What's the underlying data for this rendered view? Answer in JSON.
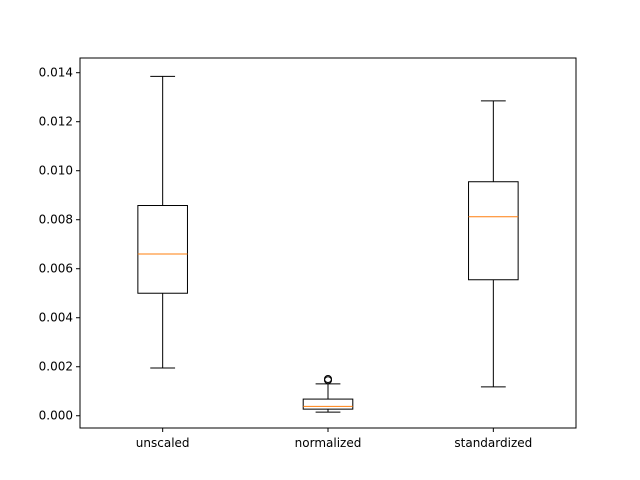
{
  "chart_data": {
    "type": "boxplot",
    "title": "",
    "xlabel": "",
    "ylabel": "",
    "ylim": [
      -0.0005,
      0.0146
    ],
    "yticks": [
      0.0,
      0.002,
      0.004,
      0.006,
      0.008,
      0.01,
      0.012,
      0.014
    ],
    "ytick_labels": [
      "0.000",
      "0.002",
      "0.004",
      "0.006",
      "0.008",
      "0.010",
      "0.012",
      "0.014"
    ],
    "grid": false,
    "categories": [
      "unscaled",
      "normalized",
      "standardized"
    ],
    "boxes": [
      {
        "whisker_low": 0.00195,
        "q1": 0.005,
        "median": 0.0066,
        "q3": 0.00858,
        "whisker_high": 0.01385,
        "outliers": []
      },
      {
        "whisker_low": 0.00015,
        "q1": 0.00027,
        "median": 0.00038,
        "q3": 0.00068,
        "whisker_high": 0.0013,
        "outliers": [
          0.00145,
          0.0015
        ]
      },
      {
        "whisker_low": 0.00118,
        "q1": 0.00555,
        "median": 0.00812,
        "q3": 0.00955,
        "whisker_high": 0.01285,
        "outliers": []
      }
    ],
    "colors": {
      "box": "#000000",
      "median": "#ff7f0e",
      "outlier": "#000000"
    }
  }
}
